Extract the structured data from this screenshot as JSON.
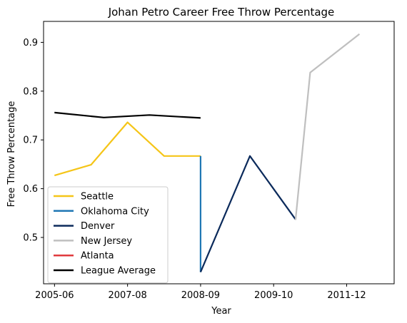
{
  "chart_data": {
    "type": "line",
    "title": "Johan Petro Career Free Throw Percentage",
    "xlabel": "Year",
    "ylabel": "Free Throw Percentage",
    "x_tick_labels": [
      "2005-06",
      "2007-08",
      "2008-09",
      "2009-10",
      "2011-12"
    ],
    "x_tick_positions": [
      0,
      2,
      4,
      6,
      8
    ],
    "xlim": [
      -0.3,
      9.3
    ],
    "y_ticks": [
      0.5,
      0.6,
      0.7,
      0.8,
      0.9
    ],
    "y_tick_labels": [
      "0.5",
      "0.6",
      "0.7",
      "0.8",
      "0.9"
    ],
    "ylim": [
      0.405,
      0.943
    ],
    "grid": false,
    "legend_position": "lower-left",
    "series": [
      {
        "name": "Seattle",
        "color": "#f5c518",
        "x": [
          0,
          1,
          2,
          3,
          4
        ],
        "y": [
          0.627,
          0.649,
          0.736,
          0.667,
          0.667
        ]
      },
      {
        "name": "Oklahoma City",
        "color": "#1f77b4",
        "x": [
          4,
          4
        ],
        "y": [
          0.667,
          0.429
        ]
      },
      {
        "name": "Denver",
        "color": "#0b2a5b",
        "x": [
          4,
          5.35,
          6.6
        ],
        "y": [
          0.429,
          0.667,
          0.537
        ]
      },
      {
        "name": "New Jersey",
        "color": "#bfbfbf",
        "x": [
          6.6,
          7.0,
          8.35
        ],
        "y": [
          0.536,
          0.838,
          0.917
        ]
      },
      {
        "name": "Atlanta",
        "color": "#e03a3e",
        "x": [],
        "y": []
      },
      {
        "name": "League Average",
        "color": "#000000",
        "x": [
          0,
          1.35,
          2.6,
          4
        ],
        "y": [
          0.756,
          0.746,
          0.751,
          0.745
        ]
      }
    ]
  }
}
